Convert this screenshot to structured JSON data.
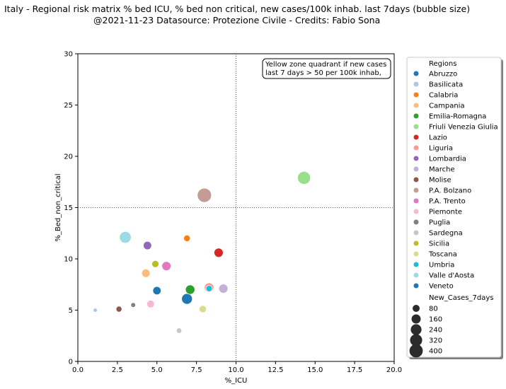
{
  "title_line_1": "Italy - Regional risk matrix % bed ICU, % bed non critical, new cases/100k inhab. last 7days (bubble size)",
  "title_line_2": "@2021-11-23 Datasource: Protezione Civile - Credits: Fabio Sona",
  "chart_data": {
    "type": "scatter",
    "xlabel": "%_ICU",
    "ylabel": "%_Bed_non_critical",
    "xlim": [
      0,
      20
    ],
    "ylim": [
      0,
      30
    ],
    "x_ticks": [
      "0.0",
      "2.5",
      "5.0",
      "7.5",
      "10.0",
      "12.5",
      "15.0",
      "17.5",
      "20.0"
    ],
    "y_ticks": [
      "0",
      "5",
      "10",
      "15",
      "20",
      "25",
      "30"
    ],
    "grid": false,
    "reference_lines": {
      "x": 10,
      "y": 15,
      "style": "dotted"
    },
    "annotation": {
      "lines": [
        "Yellow zone quadrant if new cases",
        "last 7 days > 50 per 100k inhab,"
      ],
      "position": "top-right"
    },
    "legend_placement": "outside-right",
    "legend_hue_title": "Regions",
    "legend_size_title": "New_Cases_7days",
    "size_legend_values": [
      "80",
      "160",
      "240",
      "320",
      "400"
    ],
    "series": [
      {
        "name": "Abruzzo",
        "color": "#1f77b4",
        "x": 5.0,
        "y": 6.9,
        "new_cases_7days": 105
      },
      {
        "name": "Basilicata",
        "color": "#aec7e8",
        "x": 1.1,
        "y": 5.0,
        "new_cases_7days": 12
      },
      {
        "name": "Calabria",
        "color": "#ff7f0e",
        "x": 6.9,
        "y": 12.0,
        "new_cases_7days": 55
      },
      {
        "name": "Campania",
        "color": "#ffbb78",
        "x": 4.3,
        "y": 8.6,
        "new_cases_7days": 110
      },
      {
        "name": "Emilia-Romagna",
        "color": "#2ca02c",
        "x": 7.1,
        "y": 7.0,
        "new_cases_7days": 150
      },
      {
        "name": "Friuli Venezia Giulia",
        "color": "#98df8a",
        "x": 14.3,
        "y": 17.9,
        "new_cases_7days": 330
      },
      {
        "name": "Lazio",
        "color": "#d62728",
        "x": 8.9,
        "y": 10.6,
        "new_cases_7days": 140
      },
      {
        "name": "Liguria",
        "color": "#ff9896",
        "x": 8.3,
        "y": 7.2,
        "new_cases_7days": 150
      },
      {
        "name": "Lombardia",
        "color": "#9467bd",
        "x": 4.4,
        "y": 11.3,
        "new_cases_7days": 110
      },
      {
        "name": "Marche",
        "color": "#c5b0d5",
        "x": 9.2,
        "y": 7.1,
        "new_cases_7days": 140
      },
      {
        "name": "Molise",
        "color": "#8c564b",
        "x": 2.6,
        "y": 5.1,
        "new_cases_7days": 40
      },
      {
        "name": "P.A. Bolzano",
        "color": "#c49c94",
        "x": 8.0,
        "y": 16.2,
        "new_cases_7days": 410
      },
      {
        "name": "P.A. Trento",
        "color": "#e377c2",
        "x": 5.6,
        "y": 9.3,
        "new_cases_7days": 140
      },
      {
        "name": "Piemonte",
        "color": "#f7b6d2",
        "x": 4.6,
        "y": 5.6,
        "new_cases_7days": 85
      },
      {
        "name": "Puglia",
        "color": "#7f7f7f",
        "x": 3.5,
        "y": 5.5,
        "new_cases_7days": 20
      },
      {
        "name": "Sardegna",
        "color": "#c7c7c7",
        "x": 6.4,
        "y": 3.0,
        "new_cases_7days": 30
      },
      {
        "name": "Sicilia",
        "color": "#bcbd22",
        "x": 4.9,
        "y": 9.5,
        "new_cases_7days": 70
      },
      {
        "name": "Toscana",
        "color": "#dbdb8d",
        "x": 7.9,
        "y": 5.1,
        "new_cases_7days": 75
      },
      {
        "name": "Umbria",
        "color": "#17becf",
        "x": 8.3,
        "y": 7.1,
        "new_cases_7days": 50
      },
      {
        "name": "Valle d'Aosta",
        "color": "#9edae5",
        "x": 3.0,
        "y": 12.1,
        "new_cases_7days": 260
      },
      {
        "name": "Veneto",
        "color": "#1f77b4",
        "x": 6.9,
        "y": 6.1,
        "new_cases_7days": 210
      }
    ]
  }
}
